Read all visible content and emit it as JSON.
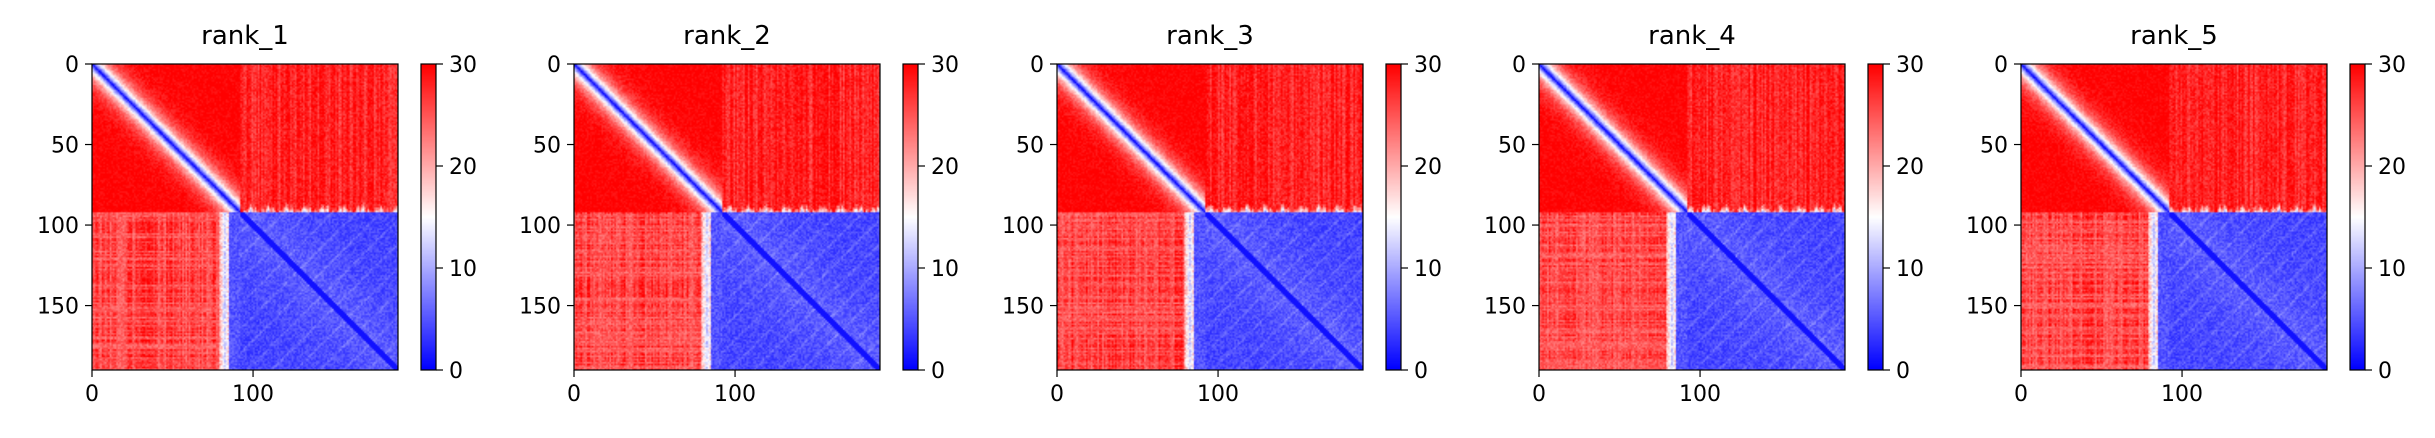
{
  "colors": {
    "low": "#0000ff",
    "mid": "#ffffff",
    "high": "#ff0000"
  },
  "chart_data": [
    {
      "type": "heatmap",
      "title": "rank_1",
      "xticks": [
        0,
        100
      ],
      "yticks": [
        0,
        50,
        100,
        150
      ],
      "colorbar_ticks": [
        0,
        10,
        20,
        30
      ],
      "clim": [
        0,
        30
      ],
      "matrix_size": 190,
      "domain_boundary": 92,
      "colormap": "bwr"
    },
    {
      "type": "heatmap",
      "title": "rank_2",
      "xticks": [
        0,
        100
      ],
      "yticks": [
        0,
        50,
        100,
        150
      ],
      "colorbar_ticks": [
        0,
        10,
        20,
        30
      ],
      "clim": [
        0,
        30
      ],
      "matrix_size": 190,
      "domain_boundary": 92,
      "colormap": "bwr"
    },
    {
      "type": "heatmap",
      "title": "rank_3",
      "xticks": [
        0,
        100
      ],
      "yticks": [
        0,
        50,
        100,
        150
      ],
      "colorbar_ticks": [
        0,
        10,
        20,
        30
      ],
      "clim": [
        0,
        30
      ],
      "matrix_size": 190,
      "domain_boundary": 92,
      "colormap": "bwr"
    },
    {
      "type": "heatmap",
      "title": "rank_4",
      "xticks": [
        0,
        100
      ],
      "yticks": [
        0,
        50,
        100,
        150
      ],
      "colorbar_ticks": [
        0,
        10,
        20,
        30
      ],
      "clim": [
        0,
        30
      ],
      "matrix_size": 190,
      "domain_boundary": 92,
      "colormap": "bwr"
    },
    {
      "type": "heatmap",
      "title": "rank_5",
      "xticks": [
        0,
        100
      ],
      "yticks": [
        0,
        50,
        100,
        150
      ],
      "colorbar_ticks": [
        0,
        10,
        20,
        30
      ],
      "clim": [
        0,
        30
      ],
      "matrix_size": 190,
      "domain_boundary": 92,
      "colormap": "bwr"
    }
  ]
}
